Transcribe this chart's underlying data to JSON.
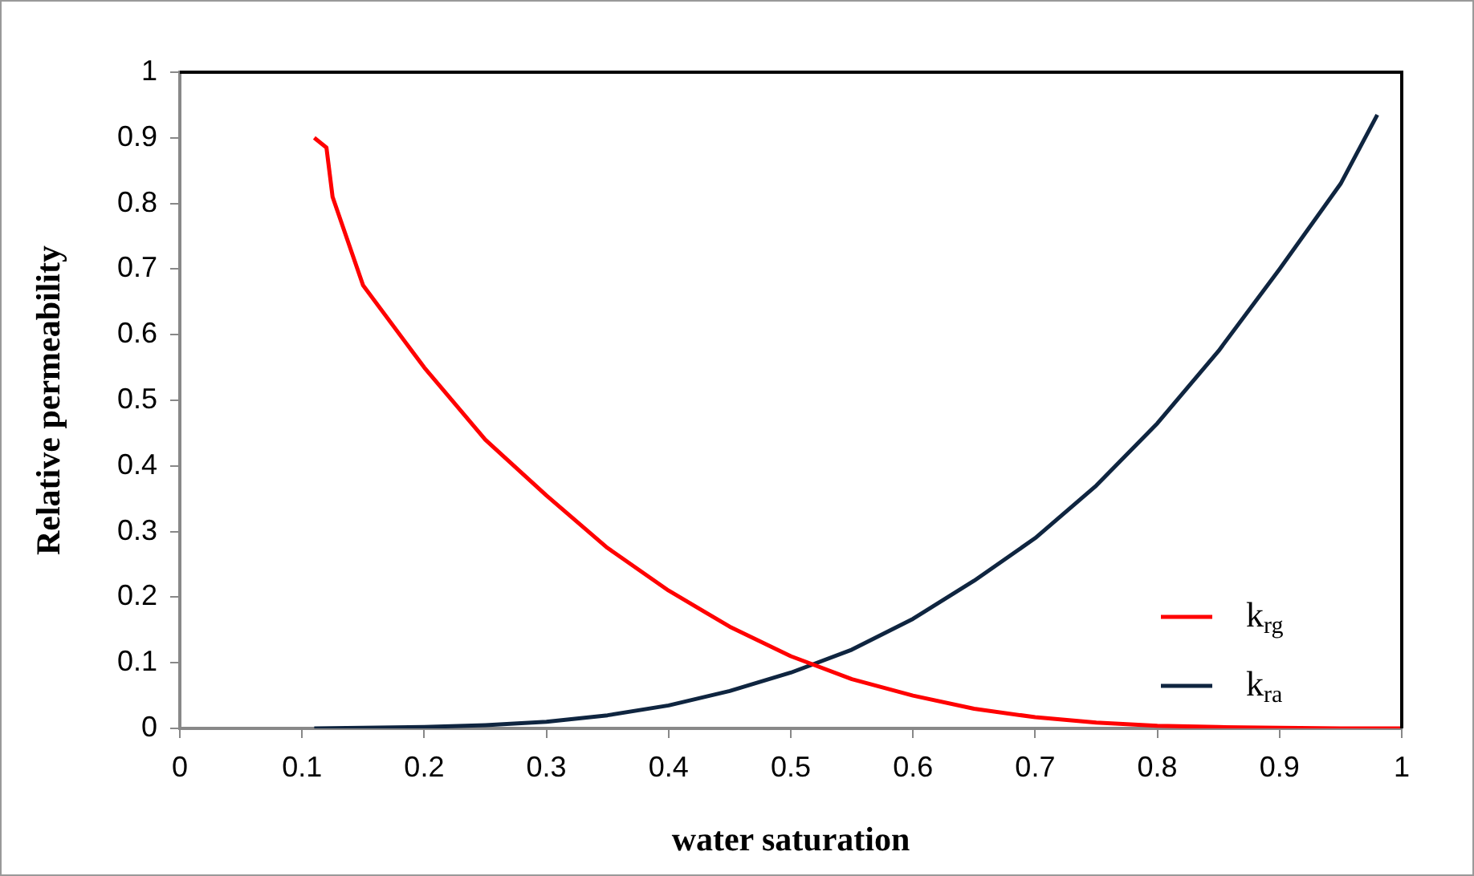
{
  "chart_data": {
    "type": "line",
    "xlabel": "water saturation",
    "ylabel": "Relative permeability",
    "xlim": [
      0,
      1
    ],
    "ylim": [
      0,
      1
    ],
    "xticks": [
      0,
      0.1,
      0.2,
      0.3,
      0.4,
      0.5,
      0.6,
      0.7,
      0.8,
      0.9,
      1
    ],
    "yticks": [
      0,
      0.1,
      0.2,
      0.3,
      0.4,
      0.5,
      0.6,
      0.7,
      0.8,
      0.9,
      1
    ],
    "grid": false,
    "legend": "bottom right",
    "marker": "none",
    "line_style": "solid",
    "series": [
      {
        "name": "k$_{rg}$",
        "color": "#ff0000",
        "x": [
          0.11,
          0.12,
          0.125,
          0.15,
          0.2,
          0.25,
          0.3,
          0.35,
          0.4,
          0.45,
          0.5,
          0.55,
          0.6,
          0.65,
          0.7,
          0.75,
          0.8,
          0.85,
          0.9,
          0.95,
          1
        ],
        "values": [
          0.9,
          0.885,
          0.81,
          0.675,
          0.55,
          0.44,
          0.355,
          0.275,
          0.21,
          0.155,
          0.11,
          0.075,
          0.05,
          0.03,
          0.017,
          0.009,
          0.004,
          0.002,
          0.001,
          0,
          0
        ]
      },
      {
        "name": "k$_{ra}$",
        "color": "#0f2540",
        "x": [
          0.11,
          0.15,
          0.2,
          0.25,
          0.3,
          0.35,
          0.4,
          0.45,
          0.5,
          0.55,
          0.6,
          0.65,
          0.7,
          0.75,
          0.8,
          0.85,
          0.9,
          0.95,
          0.98
        ],
        "values": [
          0,
          0.001,
          0.002,
          0.005,
          0.01,
          0.02,
          0.035,
          0.057,
          0.085,
          0.12,
          0.167,
          0.225,
          0.29,
          0.37,
          0.465,
          0.575,
          0.7,
          0.83,
          0.935
        ]
      }
    ]
  }
}
